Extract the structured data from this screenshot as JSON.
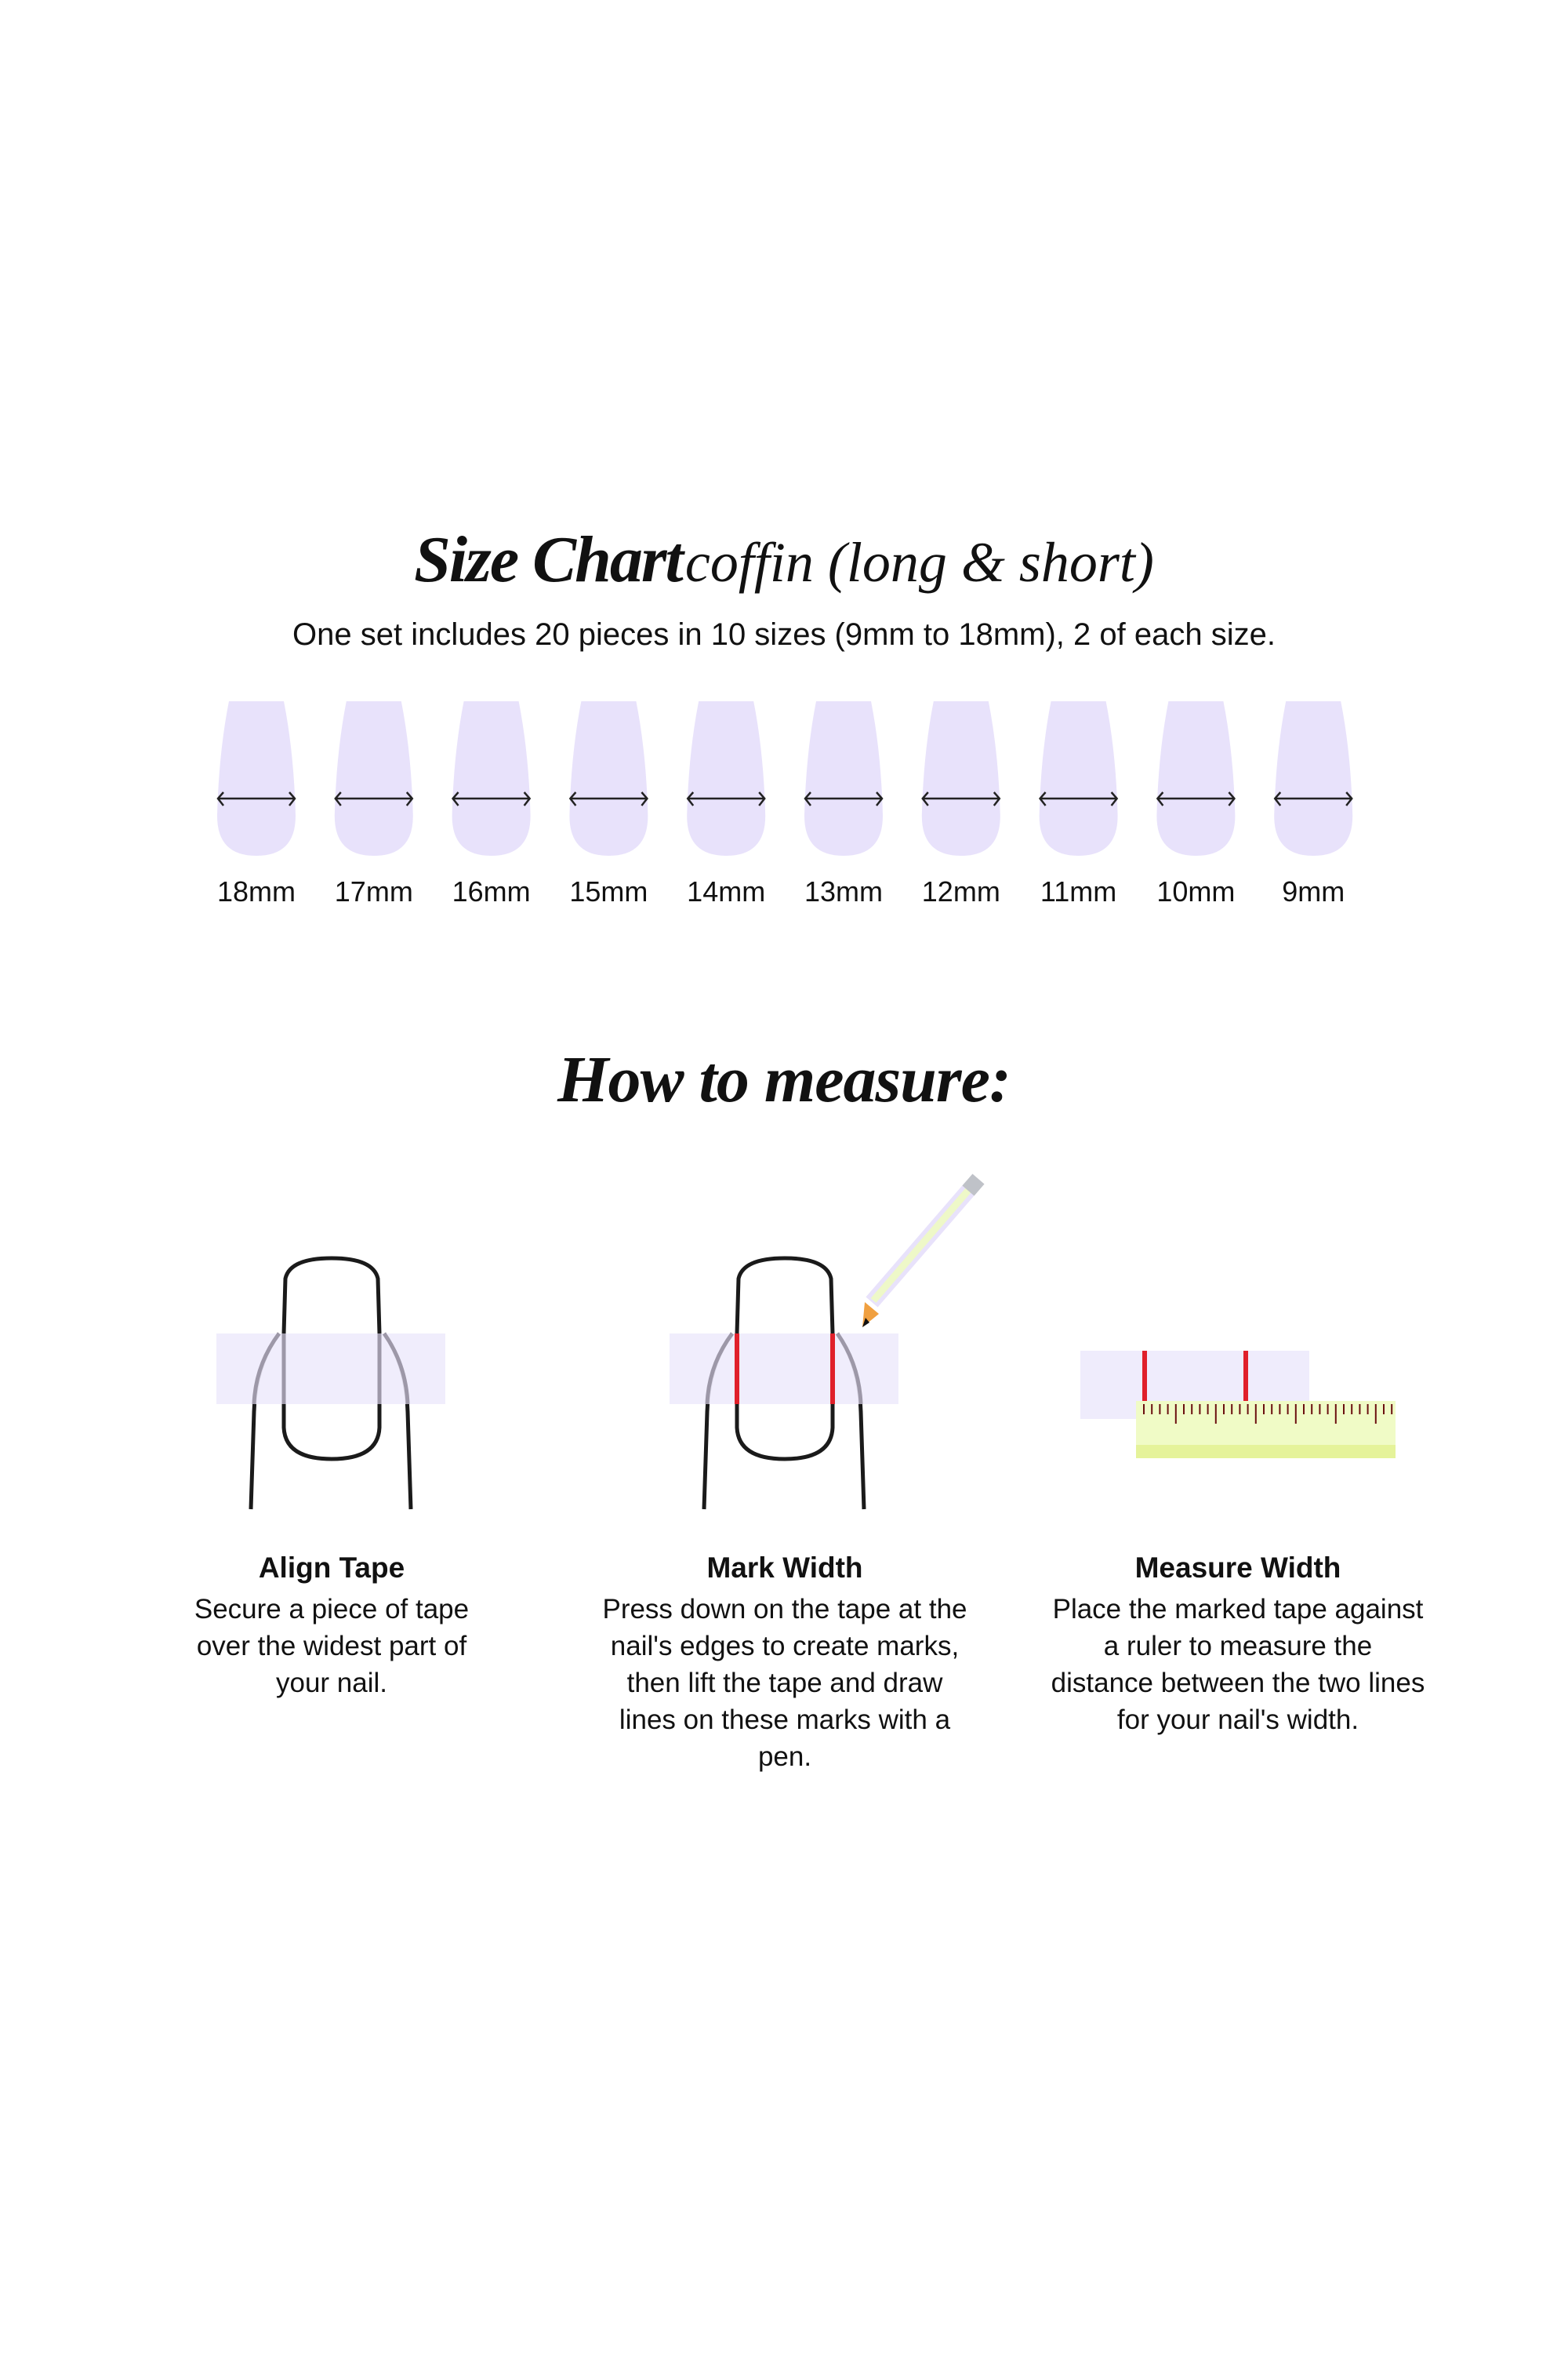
{
  "title": {
    "main": "Size Chart",
    "sub": "coffin (long & short)"
  },
  "subtitle": "One set includes 20 pieces in 10 sizes (9mm to 18mm), 2 of each size.",
  "sizes": [
    "18mm",
    "17mm",
    "16mm",
    "15mm",
    "14mm",
    "13mm",
    "12mm",
    "11mm",
    "10mm",
    "9mm"
  ],
  "how_title": "How to measure:",
  "steps": [
    {
      "title": "Align Tape",
      "text": "Secure a piece of tape over the widest part of your nail."
    },
    {
      "title": "Mark Width",
      "text": "Press down on the tape at the nail's edges to create marks, then lift the tape and draw lines on these marks with a pen."
    },
    {
      "title": "Measure Width",
      "text": "Place the marked tape against a ruler to measure the distance between the two lines for your nail's width."
    }
  ],
  "colors": {
    "nail": "#e8e2fb",
    "tape": "#efecfc",
    "mark": "#e0202a",
    "ruler": "#f0fbc6",
    "ruler_edge": "#e5f39a",
    "outline": "#1a1a1a"
  }
}
